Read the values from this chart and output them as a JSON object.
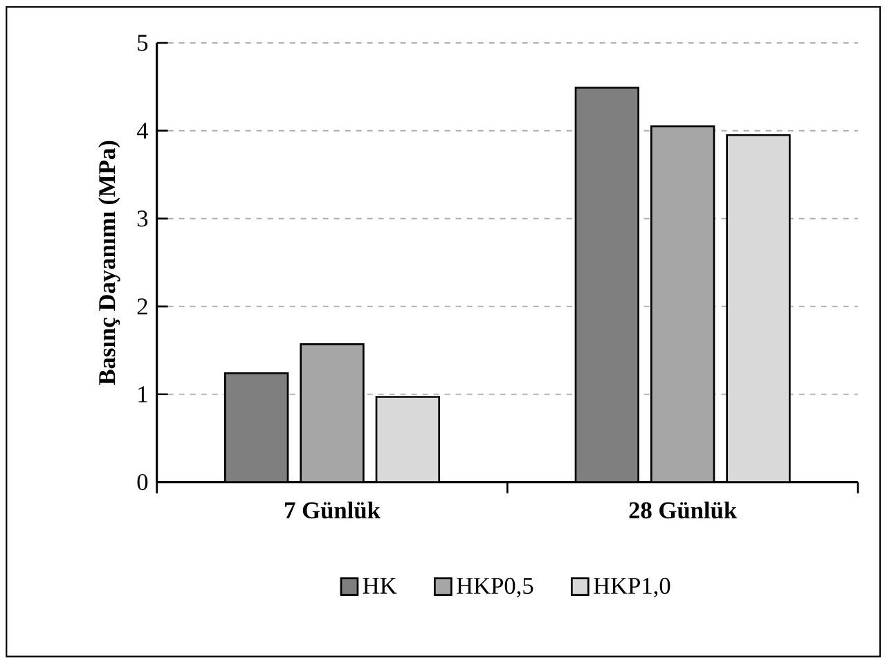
{
  "chart_data": {
    "type": "bar",
    "ylabel": "Basınç Dayanımı (MPa)",
    "categories": [
      "7 Günlük",
      "28 Günlük"
    ],
    "series": [
      {
        "name": "HK",
        "color": "#7f7f7f",
        "values": [
          1.24,
          4.49
        ]
      },
      {
        "name": "HKP0,5",
        "color": "#a6a6a6",
        "values": [
          1.57,
          4.05
        ]
      },
      {
        "name": "HKP1,0",
        "color": "#d9d9d9",
        "values": [
          0.97,
          3.95
        ]
      }
    ],
    "ylim": [
      0,
      5
    ],
    "yticks": [
      0,
      1,
      2,
      3,
      4,
      5
    ],
    "grid": "y",
    "legend": "bottom"
  }
}
